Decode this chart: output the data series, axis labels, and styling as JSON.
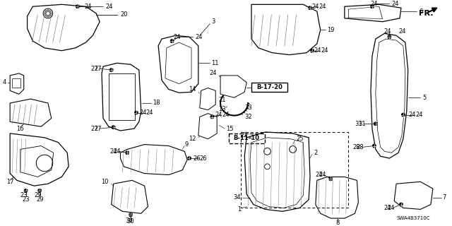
{
  "figsize": [
    6.4,
    3.2
  ],
  "dpi": 100,
  "bg": "#ffffff",
  "diagram_code": "SWA4B3710C",
  "box_b1710": "B-17-20",
  "box_b1110": "B-11-10"
}
